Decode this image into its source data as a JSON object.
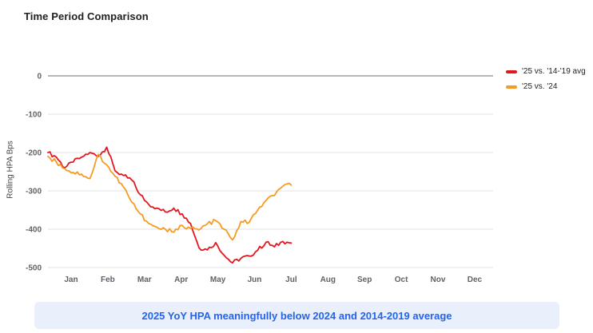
{
  "title": "Time Period Comparison",
  "caption": "2025 YoY HPA meaningfully below 2024 and 2014-2019 average",
  "colors": {
    "red_series": "#e4161e",
    "orange_series": "#f59b23",
    "caption_text": "#2563eb",
    "caption_bg": "#e9f0fc",
    "grid_line": "#e3e3e3",
    "zero_line": "#9aa0a6",
    "tick_text": "#5f6368",
    "title_text": "#212121"
  },
  "chart_data": {
    "type": "line",
    "title": "Time Period Comparison",
    "ylabel": "Rolling HPA Bps",
    "xlabel": "",
    "ylim": [
      -500,
      0
    ],
    "yticks": [
      0,
      -100,
      -200,
      -300,
      -400,
      -500
    ],
    "x_categories": [
      "Jan",
      "Feb",
      "Mar",
      "Apr",
      "May",
      "Jun",
      "Jul",
      "Aug",
      "Sep",
      "Oct",
      "Nov",
      "Dec"
    ],
    "grid": true,
    "legend_position": "right",
    "data_start_month": 0,
    "data_end_month": 6.1,
    "units": "bps",
    "series": [
      {
        "name": "'25 vs. '14-'19 avg",
        "color": "#e4161e",
        "values": [
          -200,
          -212,
          -240,
          -225,
          -212,
          -200,
          -210,
          -186,
          -248,
          -260,
          -272,
          -310,
          -335,
          -345,
          -355,
          -345,
          -360,
          -385,
          -448,
          -454,
          -435,
          -468,
          -488,
          -476,
          -470,
          -455,
          -434,
          -446,
          -432,
          -436
        ]
      },
      {
        "name": "'25 vs. '24",
        "color": "#f59b23",
        "values": [
          -210,
          -225,
          -242,
          -252,
          -256,
          -268,
          -205,
          -232,
          -262,
          -290,
          -330,
          -360,
          -385,
          -395,
          -400,
          -408,
          -390,
          -398,
          -402,
          -386,
          -378,
          -400,
          -428,
          -380,
          -382,
          -350,
          -325,
          -312,
          -288,
          -285
        ]
      }
    ]
  }
}
